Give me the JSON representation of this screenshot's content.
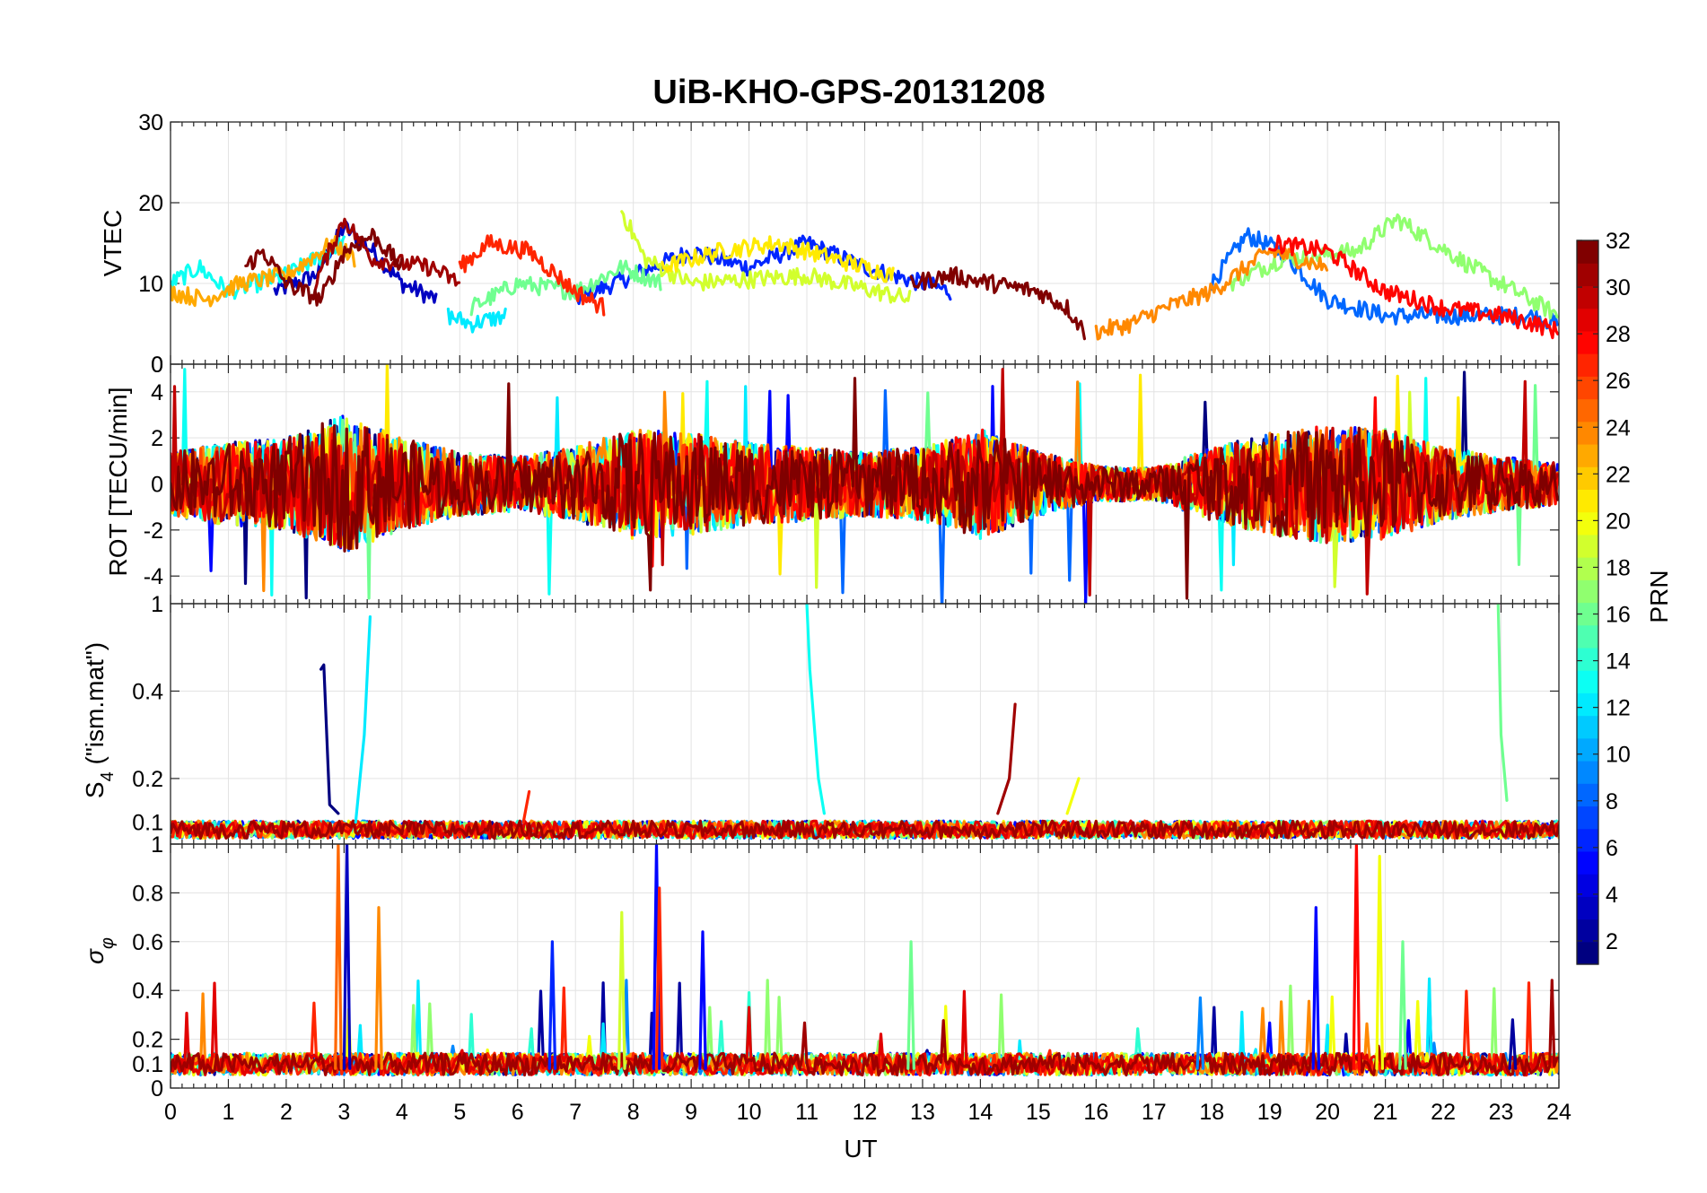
{
  "chart_data": [
    {
      "type": "line",
      "panel": "vtec",
      "title": "UiB-KHO-GPS-20131208",
      "xlabel": "UT",
      "ylabel": "VTEC",
      "xlim": [
        0,
        24
      ],
      "ylim": [
        0,
        30
      ],
      "yticks": [
        0,
        10,
        20,
        30
      ],
      "ytick_labels": [
        "0",
        "10",
        "20",
        "30"
      ],
      "grid": true,
      "color_by": "PRN",
      "series": [
        {
          "prn": 3,
          "x": [
            1.8,
            2.5,
            3.0,
            3.5,
            4.0,
            4.6
          ],
          "y": [
            9,
            11,
            17,
            14,
            10,
            8
          ]
        },
        {
          "prn": 6,
          "x": [
            7.0,
            8.0,
            9.0,
            10.0,
            11.0,
            12.0,
            13.0,
            13.5
          ],
          "y": [
            8,
            11,
            14,
            12,
            15,
            12,
            10,
            9
          ]
        },
        {
          "prn": 8,
          "x": [
            18.0,
            18.6,
            19.2,
            20.0,
            21.0,
            22.0,
            23.5,
            24.0
          ],
          "y": [
            10,
            16,
            14,
            8,
            6,
            6,
            6,
            5
          ]
        },
        {
          "prn": 12,
          "x": [
            4.8,
            5.2,
            5.8
          ],
          "y": [
            6,
            5,
            6
          ]
        },
        {
          "prn": 13,
          "x": [
            0.0,
            0.5,
            1.0,
            2.0,
            3.0
          ],
          "y": [
            10,
            12,
            9,
            11,
            15
          ]
        },
        {
          "prn": 16,
          "x": [
            5.2,
            6.0,
            7.0,
            7.8,
            8.5
          ],
          "y": [
            7,
            10,
            9,
            12,
            10
          ]
        },
        {
          "prn": 17,
          "x": [
            18.3,
            19.2,
            20.5,
            21.2,
            22.5,
            24.0
          ],
          "y": [
            10,
            13,
            14,
            18,
            12,
            6
          ]
        },
        {
          "prn": 19,
          "x": [
            7.8,
            8.2,
            9.0,
            11.0,
            12.8
          ],
          "y": [
            19,
            13,
            10,
            11,
            8
          ]
        },
        {
          "prn": 21,
          "x": [
            8.5,
            9.5,
            10.5,
            11.5,
            12.5
          ],
          "y": [
            12,
            14,
            15,
            13,
            11
          ]
        },
        {
          "prn": 23,
          "x": [
            0.0,
            0.6,
            1.2,
            2.0,
            2.8,
            3.2
          ],
          "y": [
            9,
            8,
            10,
            11,
            15,
            13
          ]
        },
        {
          "prn": 24,
          "x": [
            16.0,
            16.6,
            17.2,
            18.0,
            19.0,
            20.0
          ],
          "y": [
            4,
            5,
            7,
            9,
            14,
            12
          ]
        },
        {
          "prn": 27,
          "x": [
            5.0,
            5.5,
            6.2,
            7.0,
            7.5
          ],
          "y": [
            12,
            15,
            14,
            9,
            7
          ]
        },
        {
          "prn": 28,
          "x": [
            19.0,
            20.0,
            21.0,
            22.0,
            23.0,
            23.6,
            24.0
          ],
          "y": [
            15,
            14,
            9,
            7,
            6,
            5,
            4
          ]
        },
        {
          "prn": 31,
          "x": [
            2.5,
            3.0,
            3.5,
            4.5,
            5.0
          ],
          "y": [
            10,
            18,
            13,
            12,
            10
          ]
        },
        {
          "prn": 32,
          "x": [
            1.3,
            1.6,
            2.0,
            2.6,
            3.0,
            3.5,
            4.0
          ],
          "y": [
            12,
            14,
            10,
            8,
            14,
            16,
            12
          ]
        },
        {
          "prn": 32,
          "x": [
            12.8,
            13.5,
            14.2,
            15.0,
            15.5,
            15.8
          ],
          "y": [
            10,
            11,
            10,
            9,
            7,
            4
          ]
        }
      ]
    },
    {
      "type": "line",
      "panel": "rot",
      "xlabel": "UT",
      "ylabel": "ROT [TECU/min]",
      "xlim": [
        0,
        24
      ],
      "ylim": [
        -5.2,
        5.2
      ],
      "yticks": [
        -4,
        -2,
        0,
        2,
        4
      ],
      "ytick_labels": [
        "-4",
        "-2",
        "0",
        "2",
        "4"
      ],
      "top_edge_label": "0",
      "grid": true,
      "color_by": "PRN",
      "description_of_values": "Rate of TEC fluctuating about 0; typical amplitude ±1-2 TECU/min, larger bursts (±4-5) near 3 UT, 8-9 UT, 13.5-14 UT and 19.5-21 UT",
      "envelope": {
        "x": [
          0,
          1,
          2,
          3,
          4,
          5,
          6,
          7,
          8,
          9,
          10,
          11,
          12,
          13,
          14,
          15,
          16,
          17,
          18,
          19,
          20,
          21,
          22,
          23,
          24
        ],
        "amplitude": [
          1.4,
          1.8,
          2.0,
          3.0,
          2.0,
          1.4,
          1.2,
          1.6,
          2.4,
          2.2,
          1.8,
          1.6,
          1.4,
          1.6,
          2.4,
          1.4,
          0.8,
          0.7,
          1.6,
          2.2,
          2.6,
          2.4,
          1.6,
          1.2,
          0.9
        ]
      }
    },
    {
      "type": "line",
      "panel": "s4",
      "xlabel": "UT",
      "ylabel": "S4 (\"ism.mat\")",
      "xlim": [
        0,
        24
      ],
      "ylim": [
        0.05,
        0.6
      ],
      "yticks": [
        0.1,
        0.2,
        0.4
      ],
      "ytick_labels": [
        "0.1",
        "0.2",
        "0.4"
      ],
      "top_edge_label": "1",
      "grid": true,
      "color_by": "PRN",
      "baseline": 0.075,
      "spikes": [
        {
          "prn": 1,
          "x": [
            2.6,
            2.65,
            2.75,
            2.9
          ],
          "y": [
            0.45,
            0.46,
            0.14,
            0.12
          ]
        },
        {
          "prn": 12,
          "x": [
            3.2,
            3.35,
            3.45
          ],
          "y": [
            0.1,
            0.3,
            0.57
          ]
        },
        {
          "prn": 13,
          "x": [
            11.0,
            11.05,
            11.2,
            11.3
          ],
          "y": [
            0.6,
            0.45,
            0.2,
            0.12
          ]
        },
        {
          "prn": 31,
          "x": [
            14.3,
            14.5,
            14.6
          ],
          "y": [
            0.12,
            0.2,
            0.37
          ]
        },
        {
          "prn": 20,
          "x": [
            15.5,
            15.7
          ],
          "y": [
            0.12,
            0.2
          ]
        },
        {
          "prn": 16,
          "x": [
            22.95,
            23.0,
            23.1
          ],
          "y": [
            0.6,
            0.3,
            0.15
          ]
        },
        {
          "prn": 27,
          "x": [
            6.1,
            6.2
          ],
          "y": [
            0.1,
            0.17
          ]
        }
      ]
    },
    {
      "type": "line",
      "panel": "sigma_phi",
      "xlabel": "UT",
      "ylabel": "σφ",
      "xlim": [
        0,
        24
      ],
      "ylim": [
        0,
        1
      ],
      "yticks": [
        0,
        0.1,
        0.2,
        0.4,
        0.6,
        0.8,
        1
      ],
      "ytick_labels": [
        "0",
        "0.1",
        "0.2",
        "0.4",
        "0.6",
        "0.8",
        "1"
      ],
      "xticks": [
        0,
        1,
        2,
        3,
        4,
        5,
        6,
        7,
        8,
        9,
        10,
        11,
        12,
        13,
        14,
        15,
        16,
        17,
        18,
        19,
        20,
        21,
        22,
        23,
        24
      ],
      "xtick_labels": [
        "0",
        "1",
        "2",
        "3",
        "4",
        "5",
        "6",
        "7",
        "8",
        "9",
        "10",
        "11",
        "12",
        "13",
        "14",
        "15",
        "16",
        "17",
        "18",
        "19",
        "20",
        "21",
        "22",
        "23",
        "24"
      ],
      "grid": true,
      "color_by": "PRN",
      "baseline": 0.08,
      "spikes": [
        {
          "prn": 25,
          "x": 2.9,
          "y": 1.0
        },
        {
          "prn": 3,
          "x": 3.05,
          "y": 1.0
        },
        {
          "prn": 24,
          "x": 3.6,
          "y": 0.74
        },
        {
          "prn": 6,
          "x": 6.6,
          "y": 0.6
        },
        {
          "prn": 19,
          "x": 7.8,
          "y": 0.72
        },
        {
          "prn": 5,
          "x": 8.4,
          "y": 1.0
        },
        {
          "prn": 27,
          "x": 8.45,
          "y": 0.82
        },
        {
          "prn": 5,
          "x": 9.2,
          "y": 0.64
        },
        {
          "prn": 16,
          "x": 12.8,
          "y": 0.6
        },
        {
          "prn": 9,
          "x": 17.8,
          "y": 0.37
        },
        {
          "prn": 5,
          "x": 19.8,
          "y": 0.74
        },
        {
          "prn": 28,
          "x": 20.5,
          "y": 1.0
        },
        {
          "prn": 20,
          "x": 20.9,
          "y": 0.95
        },
        {
          "prn": 16,
          "x": 21.3,
          "y": 0.6
        },
        {
          "prn": 2,
          "x": 23.2,
          "y": 0.28
        }
      ]
    }
  ],
  "colorbar": {
    "label": "PRN",
    "range": [
      1,
      32
    ],
    "ticks": [
      2,
      4,
      6,
      8,
      10,
      12,
      14,
      16,
      18,
      20,
      22,
      24,
      26,
      28,
      30,
      32
    ],
    "tick_labels": [
      "2",
      "4",
      "6",
      "8",
      "10",
      "12",
      "14",
      "16",
      "18",
      "20",
      "22",
      "24",
      "26",
      "28",
      "30",
      "32"
    ],
    "colormap": "jet"
  }
}
